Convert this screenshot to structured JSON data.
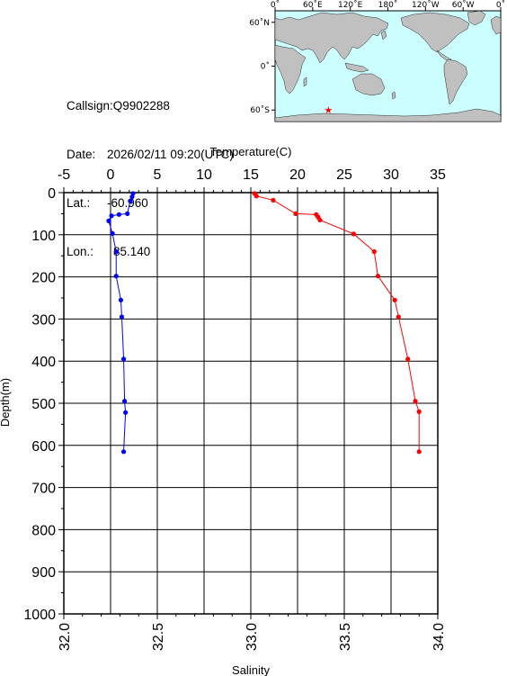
{
  "station": {
    "callsign_label": "Callsign:",
    "callsign": "Q9902288",
    "date_label": "Date:",
    "date": "2026/02/11 09:20(UTC)",
    "lat_label": "Lat.:",
    "lat": "-60.960",
    "lon_label": "Lon.:",
    "lon": "85.140"
  },
  "map": {
    "top_ticks": [
      "0˚",
      "60˚E",
      "120˚E",
      "180˚",
      "120˚W",
      "60˚W",
      "0˚"
    ],
    "left_ticks": [
      "60˚N",
      "0˚",
      "60˚S"
    ],
    "ocean_color": "#ccffff",
    "land_color": "#c0c0c0",
    "marker": {
      "lon": 85.14,
      "lat": -60.96,
      "symbol": "★",
      "color": "#ff0000"
    }
  },
  "chart_data": {
    "type": "line",
    "y_axis": {
      "label": "Depth(m)",
      "range": [
        0,
        1000
      ],
      "ticks": [
        "0",
        "100",
        "200",
        "300",
        "400",
        "500",
        "600",
        "700",
        "800",
        "900",
        "1000"
      ],
      "inverted": true
    },
    "top_axis": {
      "label": "Temperature(C)",
      "range": [
        -5,
        35
      ],
      "ticks": [
        "-5",
        "0",
        "5",
        "10",
        "15",
        "20",
        "25",
        "30",
        "35"
      ]
    },
    "bottom_axis": {
      "label": "Salinity",
      "range": [
        32.0,
        34.0
      ],
      "ticks": [
        "32.0",
        "32.5",
        "33.0",
        "33.5",
        "34.0"
      ]
    },
    "grid": true,
    "series": [
      {
        "quantity": "temperature",
        "axis": "top",
        "color": "#0000ff",
        "points": [
          {
            "depth": 2,
            "value": 2.4
          },
          {
            "depth": 10,
            "value": 2.3
          },
          {
            "depth": 20,
            "value": 2.1
          },
          {
            "depth": 50,
            "value": 1.8
          },
          {
            "depth": 52,
            "value": 0.9
          },
          {
            "depth": 55,
            "value": 0.1
          },
          {
            "depth": 67,
            "value": -0.2
          },
          {
            "depth": 97,
            "value": 0.2
          },
          {
            "depth": 140,
            "value": 0.6
          },
          {
            "depth": 198,
            "value": 0.6
          },
          {
            "depth": 255,
            "value": 1.1
          },
          {
            "depth": 295,
            "value": 1.2
          },
          {
            "depth": 395,
            "value": 1.4
          },
          {
            "depth": 495,
            "value": 1.5
          },
          {
            "depth": 522,
            "value": 1.6
          },
          {
            "depth": 615,
            "value": 1.4
          }
        ]
      },
      {
        "quantity": "salinity",
        "axis": "bottom",
        "color": "#ff0000",
        "points": [
          {
            "depth": 2,
            "value": 33.02
          },
          {
            "depth": 8,
            "value": 33.03
          },
          {
            "depth": 18,
            "value": 33.12
          },
          {
            "depth": 50,
            "value": 33.24
          },
          {
            "depth": 52,
            "value": 33.35
          },
          {
            "depth": 58,
            "value": 33.36
          },
          {
            "depth": 65,
            "value": 33.37
          },
          {
            "depth": 98,
            "value": 33.55
          },
          {
            "depth": 140,
            "value": 33.66
          },
          {
            "depth": 198,
            "value": 33.68
          },
          {
            "depth": 255,
            "value": 33.77
          },
          {
            "depth": 295,
            "value": 33.79
          },
          {
            "depth": 395,
            "value": 33.84
          },
          {
            "depth": 495,
            "value": 33.88
          },
          {
            "depth": 520,
            "value": 33.9
          },
          {
            "depth": 615,
            "value": 33.9
          }
        ]
      }
    ]
  }
}
